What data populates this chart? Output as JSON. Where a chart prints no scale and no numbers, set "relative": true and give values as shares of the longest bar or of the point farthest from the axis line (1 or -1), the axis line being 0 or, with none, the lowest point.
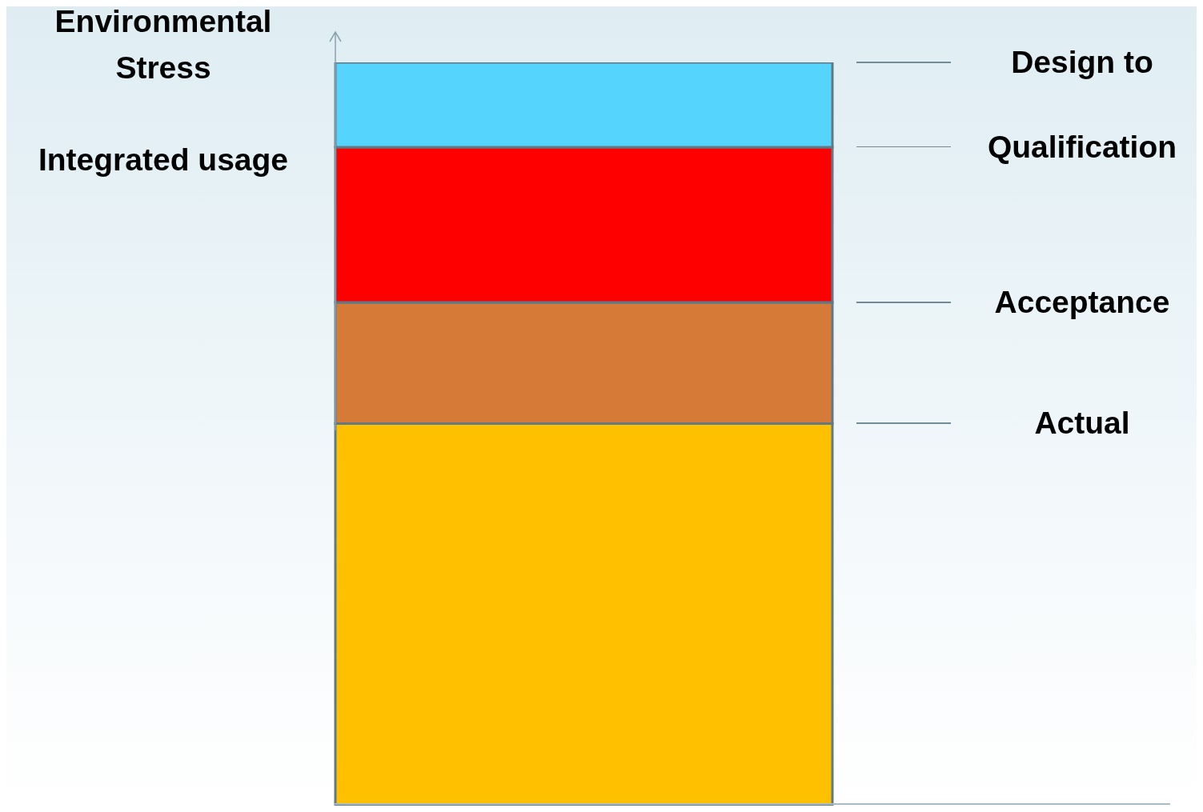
{
  "chart_data": {
    "type": "bar",
    "stacked": true,
    "relative": true,
    "ylabel": "Environmental Stress",
    "categories": [
      null
    ],
    "series": [
      {
        "color": "#ffc000",
        "values": [
          0.514
        ]
      },
      {
        "color": "#d67a38",
        "values": [
          0.163
        ]
      },
      {
        "color": "#ff0000",
        "values": [
          0.209
        ]
      },
      {
        "color": "#55d4fd",
        "values": [
          0.114
        ]
      }
    ],
    "annotations": [
      "Design to",
      "Qualification",
      "Acceptance",
      "Actual",
      "Integrated usage"
    ]
  }
}
